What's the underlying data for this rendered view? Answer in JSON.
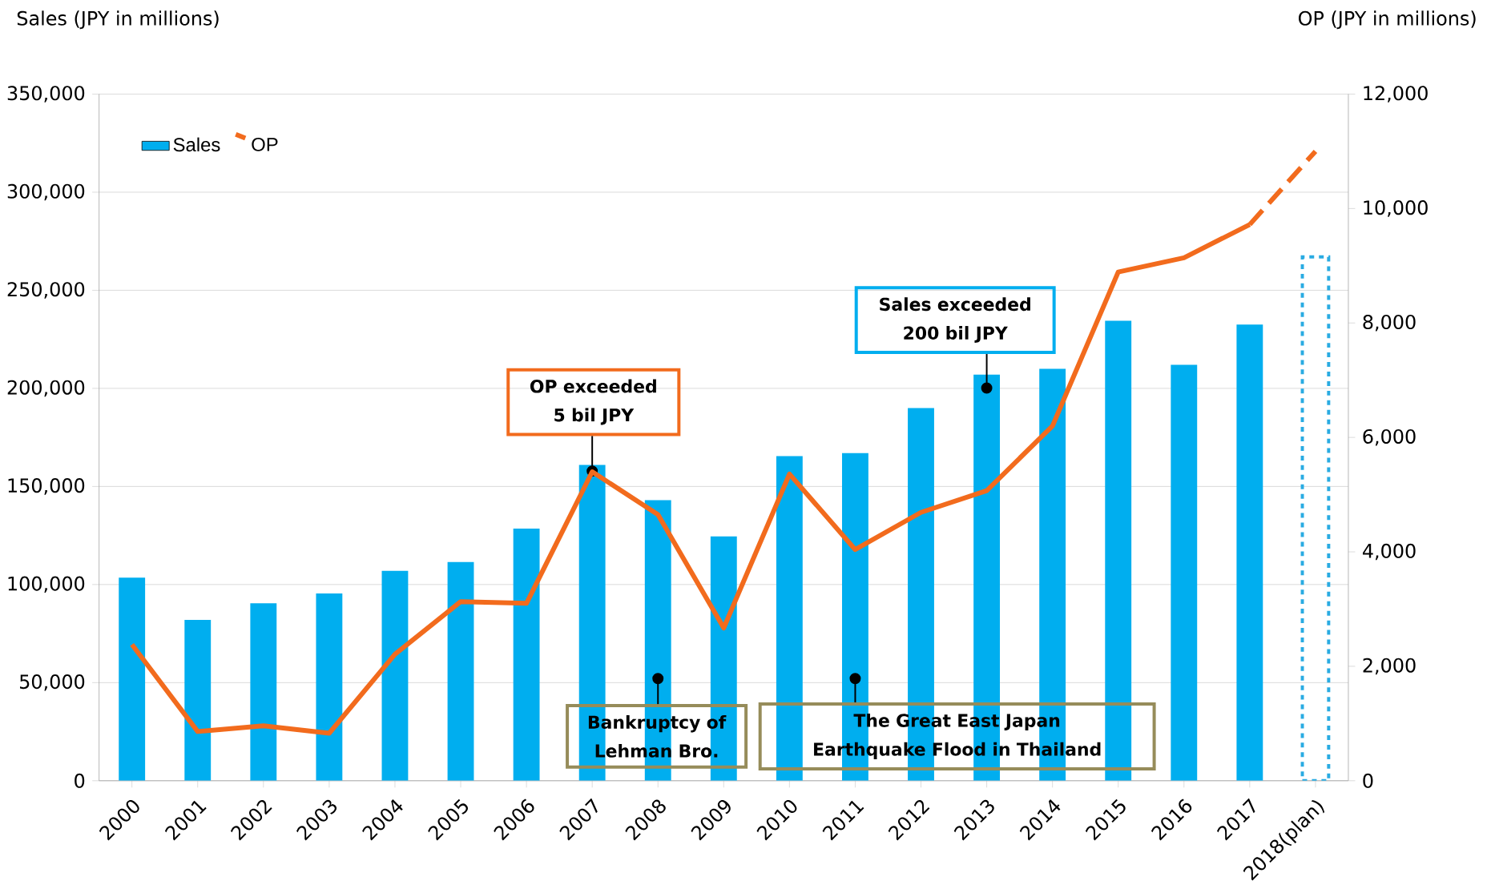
{
  "chart_data": {
    "type": "bar",
    "ylabel": "Sales (JPY in millions)",
    "y2label": "OP (JPY in millions)",
    "categories": [
      "2000",
      "2001",
      "2002",
      "2003",
      "2004",
      "2005",
      "2006",
      "2007",
      "2008",
      "2009",
      "2010",
      "2011",
      "2012",
      "2013",
      "2014",
      "2015",
      "2016",
      "2017",
      "2018(plan)"
    ],
    "series": [
      {
        "name": "Sales",
        "color": "#00aeef",
        "values": [
          103500,
          82000,
          90500,
          95500,
          107000,
          111500,
          128500,
          161000,
          143000,
          124500,
          165500,
          167000,
          190000,
          207000,
          210000,
          234500,
          212000,
          232500,
          null
        ]
      },
      {
        "color": "#29abe2",
        "line_style": "dashed",
        "values": [
          null,
          null,
          null,
          null,
          null,
          null,
          null,
          null,
          null,
          null,
          null,
          null,
          null,
          null,
          null,
          null,
          null,
          null,
          267000
        ]
      },
      {
        "name": "OP",
        "type": "line",
        "axis": "y2",
        "color": "#f26b1d",
        "values": [
          2380,
          860,
          960,
          830,
          2210,
          3130,
          3100,
          5400,
          4650,
          2670,
          5360,
          4040,
          4690,
          5070,
          6200,
          8890,
          9140,
          9720,
          null
        ]
      },
      {
        "type": "line",
        "axis": "y2",
        "color": "#f26b1d",
        "line_style": "dashed",
        "values": [
          null,
          null,
          null,
          null,
          null,
          null,
          null,
          null,
          null,
          null,
          null,
          null,
          null,
          null,
          null,
          null,
          null,
          9720,
          11000
        ]
      }
    ],
    "ylim": [
      0,
      350000
    ],
    "yticks": [
      0,
      {
        "value": 50000,
        "label": "50,000"
      },
      {
        "value": 100000,
        "label": "100,000"
      },
      {
        "value": 150000,
        "label": "150,000"
      },
      {
        "value": 200000,
        "label": "200,000"
      },
      {
        "value": 250000,
        "label": "250,000"
      },
      {
        "value": 300000,
        "label": "300,000"
      },
      {
        "value": 350000,
        "label": "350,000"
      }
    ],
    "y2lim": [
      0,
      12000
    ],
    "y2ticks": [
      0,
      {
        "value": 2000,
        "label": "2,000"
      },
      {
        "value": 4000,
        "label": "4,000"
      },
      {
        "value": 6000,
        "label": "6,000"
      },
      {
        "value": 8000,
        "label": "8,000"
      },
      {
        "value": 10000,
        "label": "10,000"
      },
      {
        "value": 12000,
        "label": "12,000"
      }
    ],
    "grid": "y",
    "legend": "top left",
    "marker": "none",
    "annotations": [
      {
        "text": "OP exceeded 5 bil JPY",
        "x": "2007",
        "y": 155000
      },
      "Sales exceeded 200 bil JPY",
      "Bankruptcy of Lehman Bro.",
      "The Great East Japan Earthquake Flood in Thailand"
    ]
  }
}
